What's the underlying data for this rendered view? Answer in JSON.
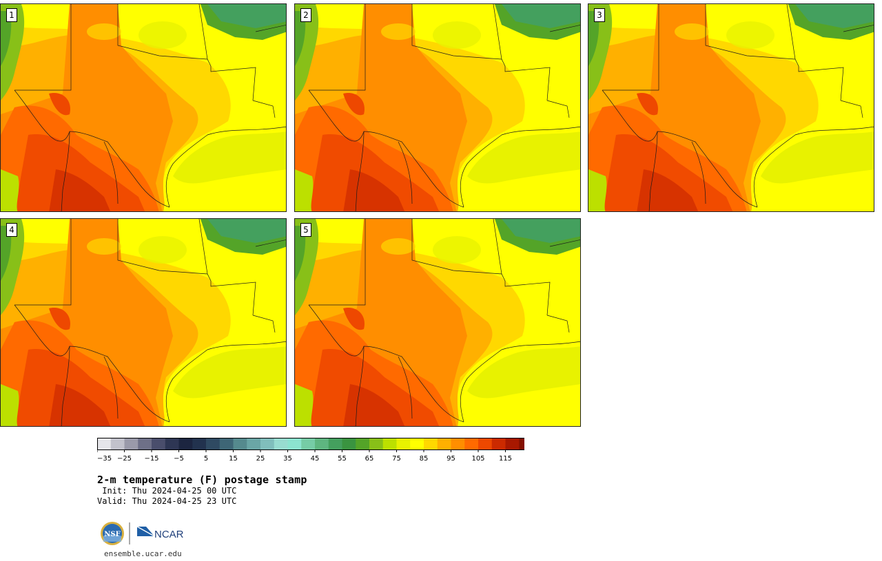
{
  "panels": [
    "1",
    "2",
    "3",
    "4",
    "5"
  ],
  "colorbar": {
    "colors": [
      "#e6e6ea",
      "#c2c2cc",
      "#9a9aaa",
      "#6e7088",
      "#4a4e6c",
      "#2e3654",
      "#1c2540",
      "#22324e",
      "#2f4a62",
      "#3e6676",
      "#558a8e",
      "#6aa6a6",
      "#80bebc",
      "#98dcd0",
      "#8ce4d0",
      "#76cca6",
      "#5eb680",
      "#44a05e",
      "#3a9440",
      "#54a428",
      "#88c018",
      "#bce000",
      "#e8f200",
      "#ffff00",
      "#ffd800",
      "#ffb000",
      "#ff8e00",
      "#ff6a00",
      "#ee4800",
      "#cc2a00",
      "#a81800",
      "#841000",
      "#5e0e08"
    ],
    "labels": [
      "−35",
      "−25",
      "−15",
      "−5",
      "5",
      "15",
      "25",
      "35",
      "45",
      "55",
      "65",
      "75",
      "85",
      "95",
      "105",
      "115"
    ]
  },
  "title": "2-m temperature (F) postage stamp",
  "init_line": " Init: Thu 2024-04-25 00 UTC",
  "valid_line": "Valid: Thu 2024-04-25 23 UTC",
  "logos": {
    "nsf": "NSF",
    "ncar": "NCAR"
  },
  "website": "ensemble.ucar.edu"
}
